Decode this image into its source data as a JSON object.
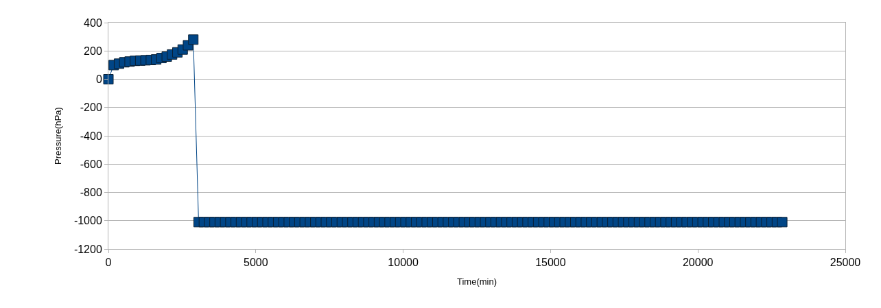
{
  "chart_data": {
    "type": "line",
    "xlabel": "Time(min)",
    "ylabel": "Pressure(hPa)",
    "xlim": [
      0,
      25000
    ],
    "xticks": [
      0,
      5000,
      10000,
      15000,
      20000,
      25000
    ],
    "ylim": [
      -1200,
      400
    ],
    "yticks": [
      -1200,
      -1000,
      -800,
      -600,
      -400,
      -200,
      0,
      200,
      400
    ],
    "grid": "y",
    "marker": "square",
    "line_style": "solid",
    "series": [
      {
        "color": "#004586",
        "x": [
          0,
          180,
          360,
          540,
          720,
          900,
          1080,
          1260,
          1440,
          1620,
          1800,
          1980,
          2160,
          2340,
          2520,
          2700,
          2880,
          3060,
          3240,
          3420,
          3600,
          3780,
          3960,
          4140,
          4320,
          4500,
          4680,
          4860,
          5040,
          5220,
          5400,
          5580,
          5760,
          5940,
          6120,
          6300,
          6480,
          6660,
          6840,
          7020,
          7200,
          7380,
          7560,
          7740,
          7920,
          8100,
          8280,
          8460,
          8640,
          8820,
          9000,
          9180,
          9360,
          9540,
          9720,
          9900,
          10080,
          10260,
          10440,
          10620,
          10800,
          10980,
          11160,
          11340,
          11520,
          11700,
          11880,
          12060,
          12240,
          12420,
          12600,
          12780,
          12960,
          13140,
          13320,
          13500,
          13680,
          13860,
          14040,
          14220,
          14400,
          14580,
          14760,
          14940,
          15120,
          15300,
          15480,
          15660,
          15840,
          16020,
          16200,
          16380,
          16560,
          16740,
          16920,
          17100,
          17280,
          17460,
          17640,
          17820,
          18000,
          18180,
          18360,
          18540,
          18720,
          18900,
          19080,
          19260,
          19440,
          19620,
          19800,
          19980,
          20160,
          20340,
          20520,
          20700,
          20880,
          21060,
          21240,
          21420,
          21600,
          21780,
          21960,
          22140,
          22320,
          22500,
          22680,
          22860
        ],
        "values": [
          0,
          100,
          110,
          120,
          125,
          130,
          132,
          134,
          136,
          140,
          150,
          160,
          175,
          190,
          210,
          240,
          280,
          -1010,
          -1010,
          -1010,
          -1010,
          -1010,
          -1010,
          -1010,
          -1010,
          -1010,
          -1010,
          -1010,
          -1010,
          -1010,
          -1010,
          -1010,
          -1010,
          -1010,
          -1010,
          -1010,
          -1010,
          -1010,
          -1010,
          -1010,
          -1010,
          -1010,
          -1010,
          -1010,
          -1010,
          -1010,
          -1010,
          -1010,
          -1010,
          -1010,
          -1010,
          -1010,
          -1010,
          -1010,
          -1010,
          -1010,
          -1010,
          -1010,
          -1010,
          -1010,
          -1010,
          -1010,
          -1010,
          -1010,
          -1010,
          -1010,
          -1010,
          -1010,
          -1010,
          -1010,
          -1010,
          -1010,
          -1010,
          -1010,
          -1010,
          -1010,
          -1010,
          -1010,
          -1010,
          -1010,
          -1010,
          -1010,
          -1010,
          -1010,
          -1010,
          -1010,
          -1010,
          -1010,
          -1010,
          -1010,
          -1010,
          -1010,
          -1010,
          -1010,
          -1010,
          -1010,
          -1010,
          -1010,
          -1010,
          -1010,
          -1010,
          -1010,
          -1010,
          -1010,
          -1010,
          -1010,
          -1010,
          -1010,
          -1010,
          -1010,
          -1010,
          -1010,
          -1010,
          -1010,
          -1010,
          -1010,
          -1010,
          -1010,
          -1010,
          -1010,
          -1010,
          -1010,
          -1010,
          -1010,
          -1010,
          -1010,
          -1010,
          -1010
        ]
      }
    ]
  }
}
